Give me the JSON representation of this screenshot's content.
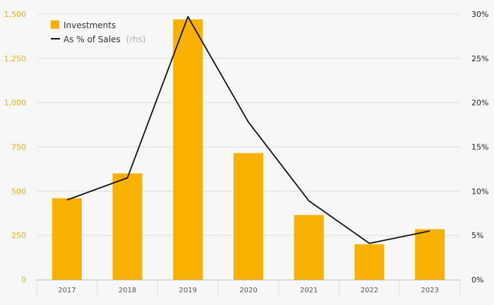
{
  "chart_data": {
    "type": "bar",
    "categories": [
      "2017",
      "2018",
      "2019",
      "2020",
      "2021",
      "2022",
      "2023"
    ],
    "series": [
      {
        "name": "Investments",
        "type": "bar",
        "axis": "left",
        "values": [
          460,
          600,
          1470,
          715,
          365,
          200,
          285
        ]
      },
      {
        "name": "As % of Sales",
        "name_note": "(rhs)",
        "type": "line",
        "axis": "right",
        "values": [
          9.0,
          11.5,
          29.7,
          17.8,
          8.9,
          4.1,
          5.5
        ]
      }
    ],
    "y_left": {
      "min": 0,
      "max": 1500,
      "ticks": [
        0,
        250,
        500,
        750,
        1000,
        1250,
        1500
      ],
      "tick_labels": [
        "0",
        "250",
        "500",
        "750",
        "1,000",
        "1,250",
        "1,500"
      ]
    },
    "y_right": {
      "min": 0,
      "max": 30,
      "ticks": [
        0,
        5,
        10,
        15,
        20,
        25,
        30
      ],
      "tick_labels": [
        "0%",
        "5%",
        "10%",
        "15%",
        "20%",
        "25%",
        "30%"
      ]
    },
    "grid": true,
    "legend_position": "top-left",
    "colors": {
      "bar": "#f9b100",
      "line": "#111111",
      "left_axis_text": "#f0ad00",
      "grid": "#dddddd"
    }
  }
}
